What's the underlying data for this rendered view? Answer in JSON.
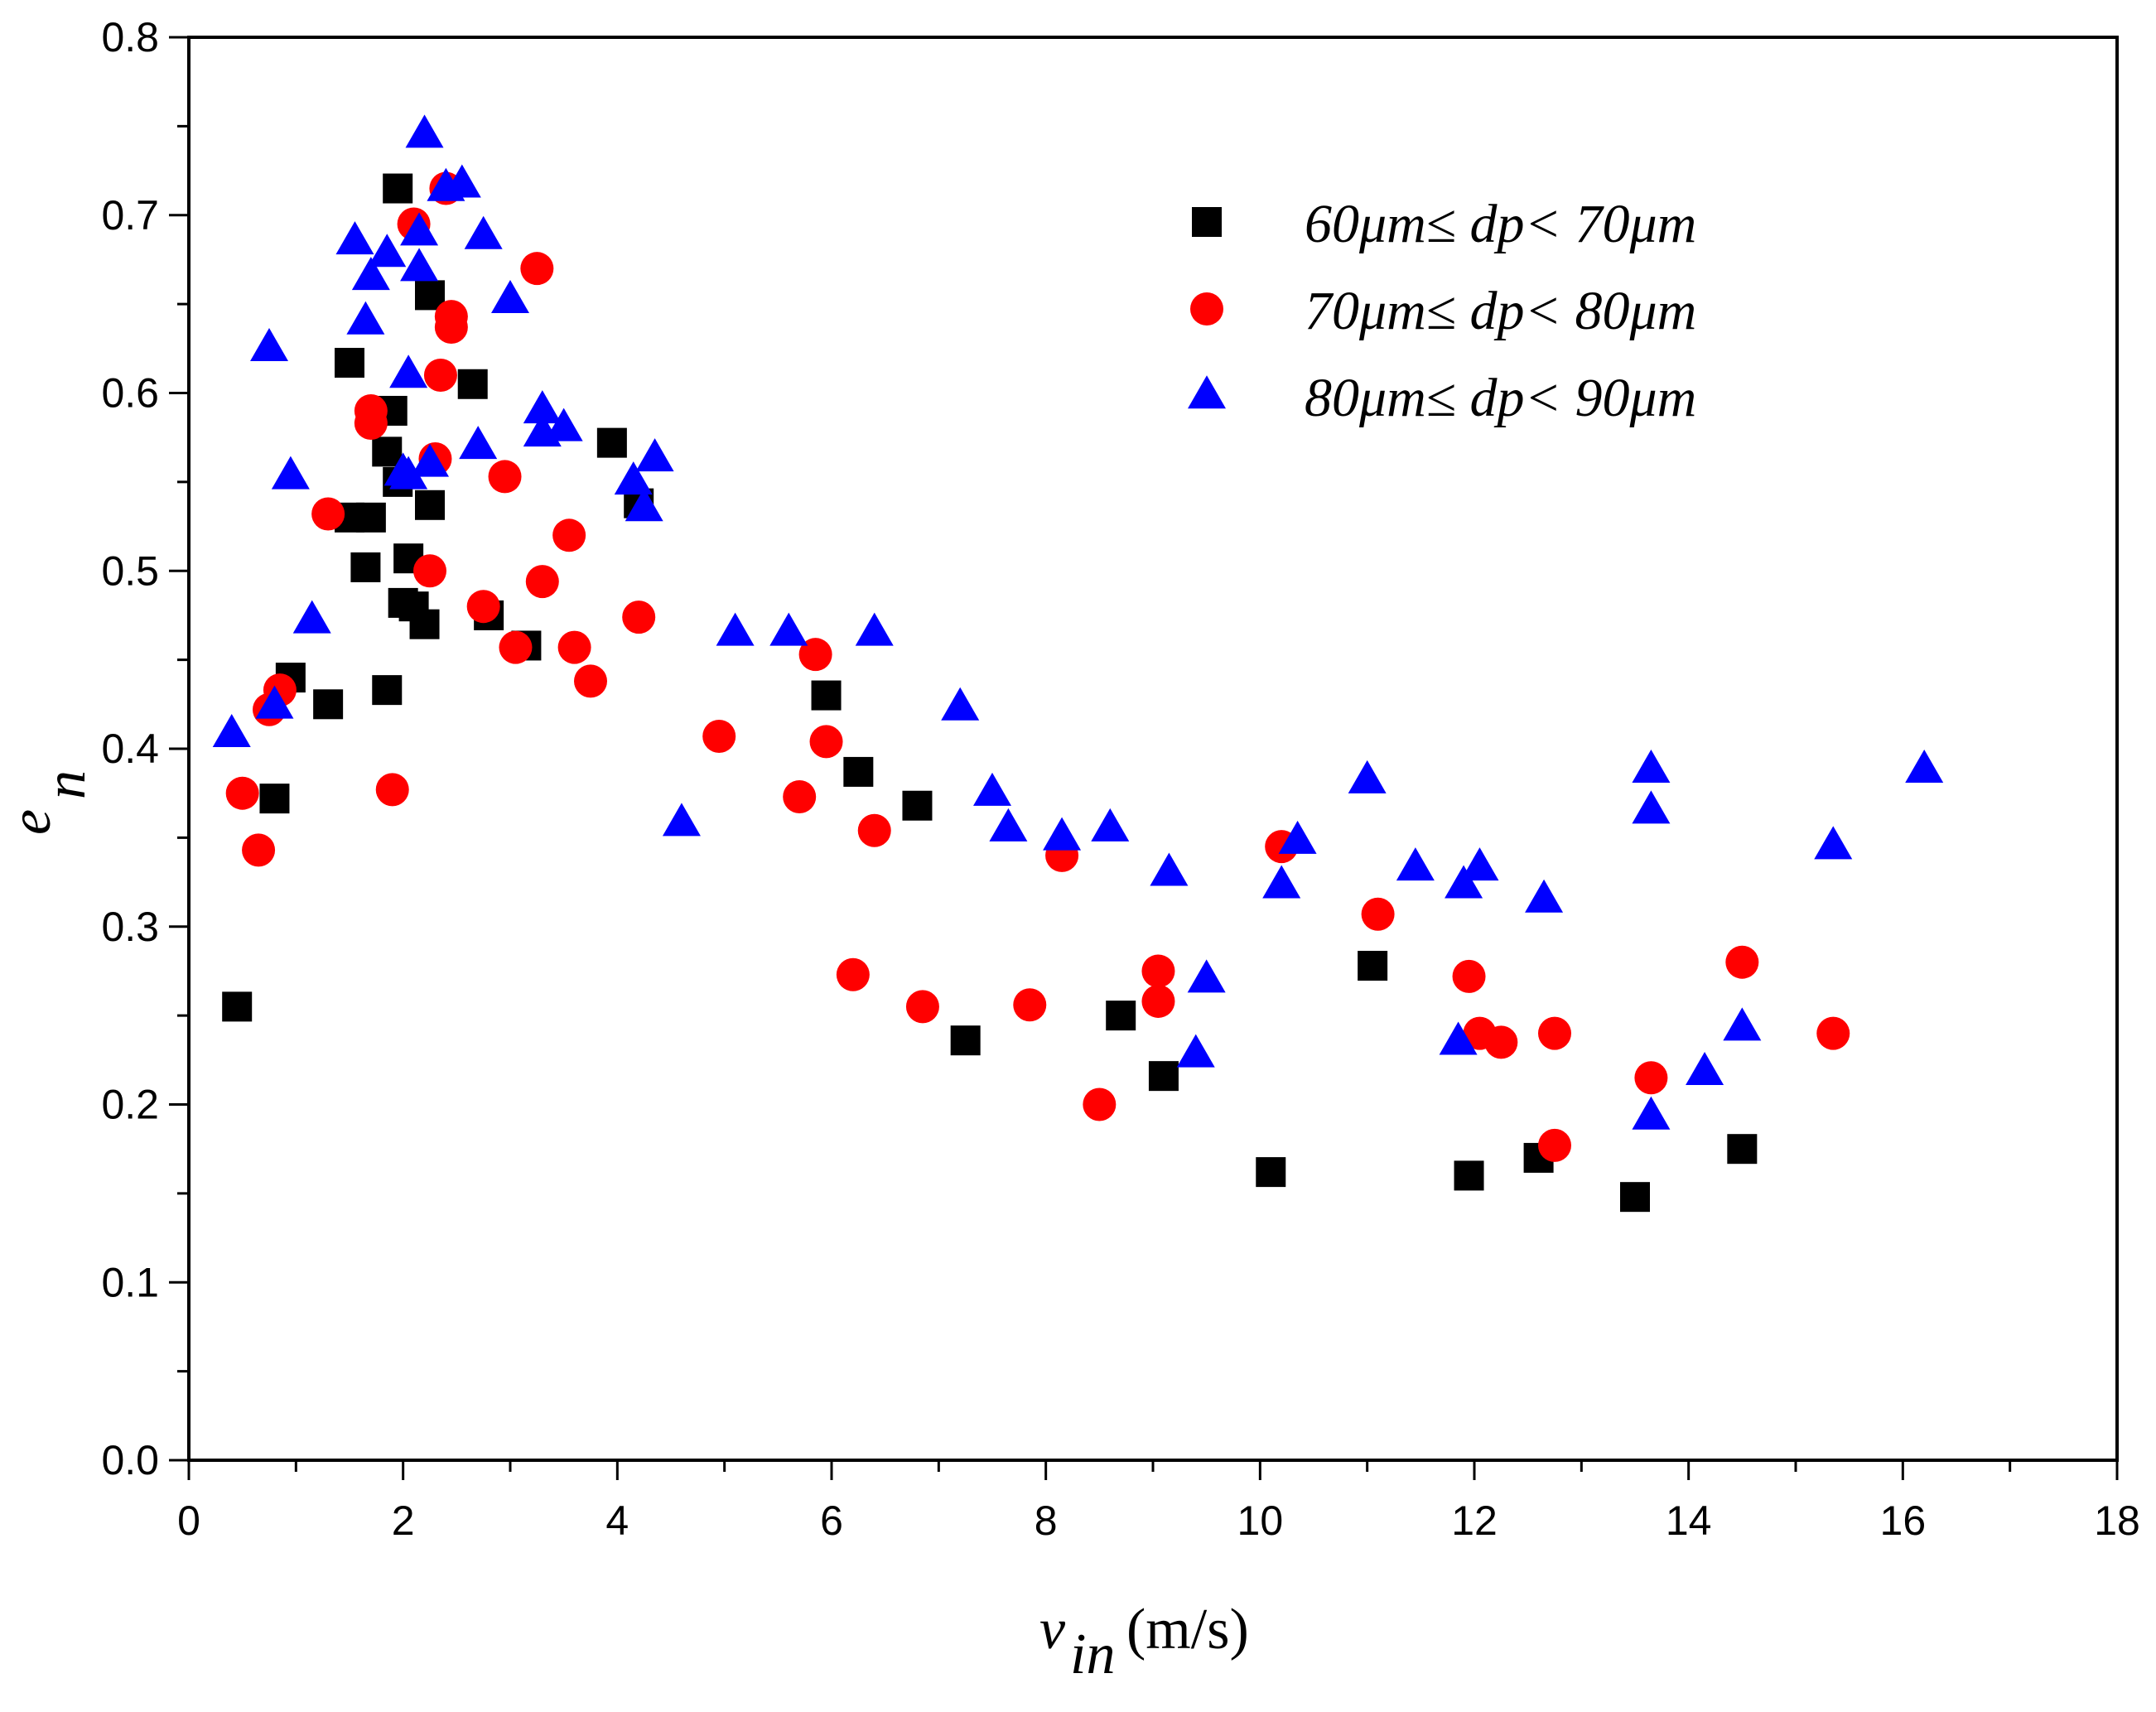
{
  "chart_data": {
    "type": "scatter",
    "title": "",
    "xlabel": {
      "main": "v",
      "sub": "in",
      "unit": "(m/s)"
    },
    "ylabel": {
      "main": "e",
      "sub": "n"
    },
    "xlim": [
      0,
      18
    ],
    "ylim": [
      0.0,
      0.8
    ],
    "x_ticks": [
      "0",
      "2",
      "4",
      "6",
      "8",
      "10",
      "12",
      "14",
      "16",
      "18"
    ],
    "y_ticks": [
      "0.0",
      "0.1",
      "0.2",
      "0.3",
      "0.4",
      "0.5",
      "0.6",
      "0.7",
      "0.8"
    ],
    "grid": false,
    "legend_position": "top-right",
    "series": [
      {
        "name": "60μm≤ dp< 70μm",
        "marker": "square",
        "color": "#000000",
        "points": [
          [
            0.45,
            0.255
          ],
          [
            0.8,
            0.372
          ],
          [
            0.95,
            0.44
          ],
          [
            1.3,
            0.425
          ],
          [
            1.5,
            0.53
          ],
          [
            1.5,
            0.617
          ],
          [
            1.65,
            0.502
          ],
          [
            1.7,
            0.53
          ],
          [
            1.85,
            0.567
          ],
          [
            1.85,
            0.433
          ],
          [
            1.9,
            0.59
          ],
          [
            1.95,
            0.55
          ],
          [
            1.95,
            0.715
          ],
          [
            2.0,
            0.482
          ],
          [
            2.05,
            0.507
          ],
          [
            2.1,
            0.48
          ],
          [
            2.2,
            0.47
          ],
          [
            2.25,
            0.537
          ],
          [
            2.25,
            0.655
          ],
          [
            2.65,
            0.605
          ],
          [
            2.8,
            0.475
          ],
          [
            3.15,
            0.458
          ],
          [
            3.95,
            0.572
          ],
          [
            4.2,
            0.538
          ],
          [
            5.95,
            0.43
          ],
          [
            6.25,
            0.387
          ],
          [
            6.8,
            0.368
          ],
          [
            7.25,
            0.236
          ],
          [
            8.7,
            0.25
          ],
          [
            9.1,
            0.216
          ],
          [
            10.1,
            0.162
          ],
          [
            11.05,
            0.278
          ],
          [
            11.95,
            0.16
          ],
          [
            12.6,
            0.17
          ],
          [
            13.5,
            0.148
          ],
          [
            14.5,
            0.175
          ]
        ]
      },
      {
        "name": "70μm≤ dp< 80μm",
        "marker": "circle",
        "color": "#ff0000",
        "points": [
          [
            0.5,
            0.375
          ],
          [
            0.65,
            0.343
          ],
          [
            0.75,
            0.422
          ],
          [
            0.85,
            0.433
          ],
          [
            1.3,
            0.532
          ],
          [
            1.7,
            0.59
          ],
          [
            1.7,
            0.583
          ],
          [
            1.9,
            0.377
          ],
          [
            2.1,
            0.695
          ],
          [
            2.25,
            0.5
          ],
          [
            2.3,
            0.563
          ],
          [
            2.35,
            0.61
          ],
          [
            2.4,
            0.715
          ],
          [
            2.45,
            0.643
          ],
          [
            2.45,
            0.637
          ],
          [
            2.75,
            0.48
          ],
          [
            2.95,
            0.553
          ],
          [
            3.05,
            0.457
          ],
          [
            3.25,
            0.67
          ],
          [
            3.3,
            0.494
          ],
          [
            3.55,
            0.52
          ],
          [
            3.6,
            0.457
          ],
          [
            3.75,
            0.438
          ],
          [
            4.2,
            0.474
          ],
          [
            4.95,
            0.407
          ],
          [
            5.7,
            0.373
          ],
          [
            5.85,
            0.453
          ],
          [
            5.95,
            0.404
          ],
          [
            6.2,
            0.273
          ],
          [
            6.4,
            0.354
          ],
          [
            6.85,
            0.255
          ],
          [
            7.85,
            0.256
          ],
          [
            8.15,
            0.34
          ],
          [
            8.5,
            0.2
          ],
          [
            9.05,
            0.275
          ],
          [
            9.05,
            0.258
          ],
          [
            10.2,
            0.345
          ],
          [
            11.1,
            0.307
          ],
          [
            11.95,
            0.272
          ],
          [
            12.05,
            0.24
          ],
          [
            12.25,
            0.235
          ],
          [
            12.75,
            0.24
          ],
          [
            12.75,
            0.177
          ],
          [
            13.65,
            0.215
          ],
          [
            14.5,
            0.28
          ],
          [
            15.35,
            0.24
          ]
        ]
      },
      {
        "name": "80μm≤ dp< 90μm",
        "marker": "triangle",
        "color": "#0000ff",
        "points": [
          [
            0.4,
            0.408
          ],
          [
            0.75,
            0.625
          ],
          [
            0.8,
            0.424
          ],
          [
            0.95,
            0.553
          ],
          [
            1.15,
            0.472
          ],
          [
            1.55,
            0.685
          ],
          [
            1.65,
            0.64
          ],
          [
            1.7,
            0.665
          ],
          [
            1.85,
            0.678
          ],
          [
            2.0,
            0.555
          ],
          [
            2.05,
            0.61
          ],
          [
            2.05,
            0.553
          ],
          [
            2.15,
            0.69
          ],
          [
            2.15,
            0.67
          ],
          [
            2.2,
            0.745
          ],
          [
            2.25,
            0.56
          ],
          [
            2.4,
            0.715
          ],
          [
            2.55,
            0.717
          ],
          [
            2.7,
            0.57
          ],
          [
            2.75,
            0.688
          ],
          [
            3.0,
            0.652
          ],
          [
            3.3,
            0.59
          ],
          [
            3.3,
            0.577
          ],
          [
            3.5,
            0.58
          ],
          [
            4.15,
            0.55
          ],
          [
            4.25,
            0.535
          ],
          [
            4.35,
            0.563
          ],
          [
            4.6,
            0.358
          ],
          [
            5.1,
            0.465
          ],
          [
            5.6,
            0.465
          ],
          [
            6.4,
            0.465
          ],
          [
            7.2,
            0.423
          ],
          [
            7.5,
            0.375
          ],
          [
            7.65,
            0.355
          ],
          [
            8.15,
            0.35
          ],
          [
            8.6,
            0.355
          ],
          [
            9.15,
            0.33
          ],
          [
            9.4,
            0.228
          ],
          [
            9.5,
            0.27
          ],
          [
            10.2,
            0.323
          ],
          [
            10.35,
            0.348
          ],
          [
            11.0,
            0.382
          ],
          [
            11.45,
            0.333
          ],
          [
            11.85,
            0.235
          ],
          [
            11.9,
            0.323
          ],
          [
            12.05,
            0.333
          ],
          [
            12.65,
            0.315
          ],
          [
            13.65,
            0.388
          ],
          [
            13.65,
            0.365
          ],
          [
            13.65,
            0.193
          ],
          [
            14.15,
            0.218
          ],
          [
            14.5,
            0.243
          ],
          [
            15.35,
            0.345
          ],
          [
            16.2,
            0.388
          ]
        ]
      }
    ]
  }
}
